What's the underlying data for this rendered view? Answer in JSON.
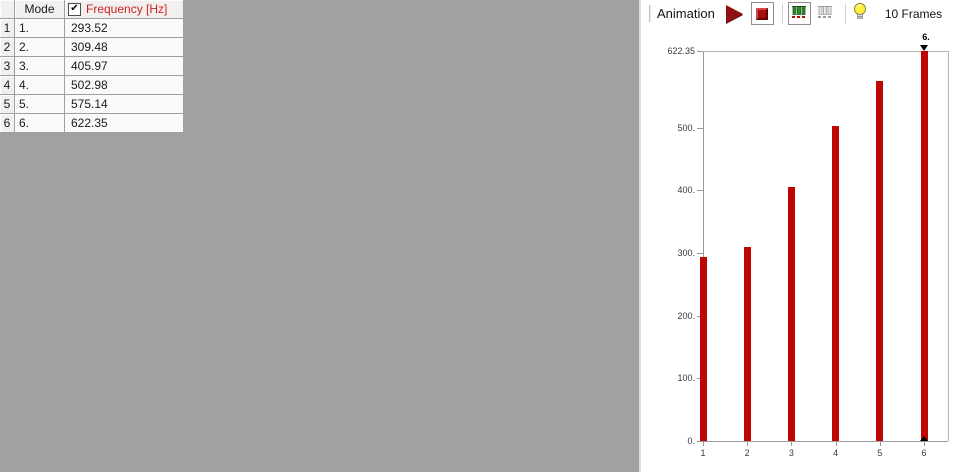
{
  "table": {
    "corner_header": "",
    "mode_header": "Mode",
    "frequency_header": "Frequency [Hz]",
    "frequency_checkbox_checked": true,
    "checkmark_glyph": "✔",
    "rows": [
      {
        "num": "1",
        "mode": "1.",
        "frequency": "293.52"
      },
      {
        "num": "2",
        "mode": "2.",
        "frequency": "309.48"
      },
      {
        "num": "3",
        "mode": "3.",
        "frequency": "405.97"
      },
      {
        "num": "4",
        "mode": "4.",
        "frequency": "502.98"
      },
      {
        "num": "5",
        "mode": "5.",
        "frequency": "575.14"
      },
      {
        "num": "6",
        "mode": "6.",
        "frequency": "622.35"
      }
    ]
  },
  "toolbar": {
    "title": "Animation",
    "frames_label": "10 Frames",
    "icons": [
      "play-icon",
      "stop-icon",
      "bars-active-icon",
      "bars-inactive-icon",
      "bulb-icon"
    ]
  },
  "chart_data": {
    "type": "bar",
    "title": "",
    "xlabel": "",
    "ylabel": "",
    "categories": [
      "1",
      "2",
      "3",
      "4",
      "5",
      "6"
    ],
    "values": [
      293.52,
      309.48,
      405.97,
      502.98,
      575.14,
      622.35
    ],
    "ylim": [
      0,
      622.35
    ],
    "yticks": [
      {
        "value": 622.35,
        "label": "622.35"
      },
      {
        "value": 500,
        "label": "500."
      },
      {
        "value": 400,
        "label": "400."
      },
      {
        "value": 300,
        "label": "300."
      },
      {
        "value": 200,
        "label": "200."
      },
      {
        "value": 100,
        "label": "100."
      },
      {
        "value": 0,
        "label": "0."
      }
    ],
    "grid": false,
    "legend": "none",
    "annotation": {
      "bar_index": 5,
      "label": "6."
    },
    "bar_color": "#c00505"
  },
  "colors": {
    "panel_gray": "#a1a1a1",
    "table_header_bg": "#f1f0ee",
    "table_cell_bg": "#fafaf8",
    "frequency_header_red": "#cc2222",
    "bar_red": "#c00505",
    "icon_dark_red": "#8e1010",
    "icon_green": "#2f8a2f",
    "bulb_yellow": "#ffef3e",
    "axis_gray": "#9a9a9a"
  }
}
